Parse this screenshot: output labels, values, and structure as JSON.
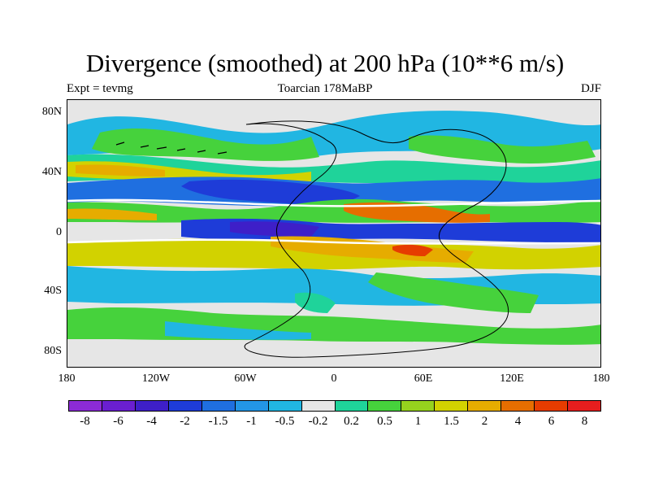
{
  "title": "Divergence (smoothed) at 200 hPa (10**6 m/s)",
  "subtitle_left": "Expt = tevmg",
  "subtitle_center": "Toarcian 178MaBP",
  "subtitle_right": "DJF",
  "axes": {
    "y_ticks": [
      "80N",
      "40N",
      "0",
      "40S",
      "80S"
    ],
    "x_ticks": [
      "180",
      "120W",
      "60W",
      "0",
      "60E",
      "120E",
      "180"
    ]
  },
  "colorbar": {
    "colors": [
      "#8c2bd6",
      "#6a1fd0",
      "#3e1fc8",
      "#1e3cd8",
      "#1f6fe0",
      "#2396e6",
      "#21b6e2",
      "#e6e6e6",
      "#1fd39a",
      "#46d23c",
      "#96d21e",
      "#d2d200",
      "#e6ac00",
      "#e66e00",
      "#e63c00",
      "#e61e1e"
    ],
    "labels": [
      "-8",
      "-6",
      "-4",
      "-2",
      "-1.5",
      "-1",
      "-0.5",
      "-0.2",
      "0.2",
      "0.5",
      "1",
      "1.5",
      "2",
      "4",
      "6",
      "8"
    ]
  }
}
